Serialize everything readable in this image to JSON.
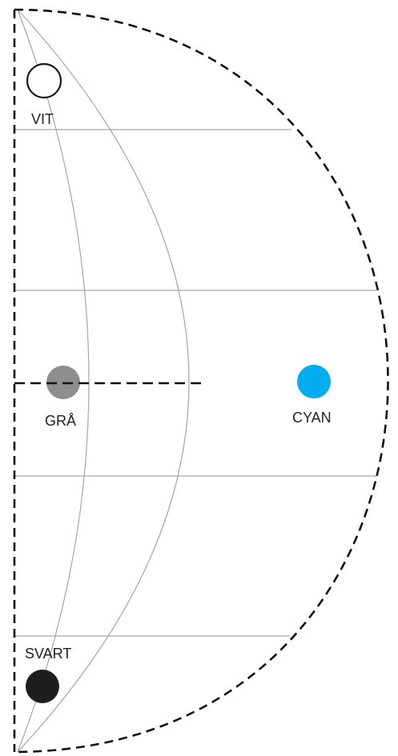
{
  "diagram": {
    "colors": {
      "outline": "#111111",
      "grid": "#a6a6a6",
      "vit": "#ffffff",
      "gra": "#8e8e8e",
      "cyan": "#00aeef",
      "svart": "#1e1e1e"
    },
    "points": [
      {
        "id": "vit",
        "label": "VIT",
        "color": "#ffffff"
      },
      {
        "id": "gra",
        "label": "GRÅ",
        "color": "#8e8e8e"
      },
      {
        "id": "cyan",
        "label": "CYAN",
        "color": "#00aeef"
      },
      {
        "id": "svart",
        "label": "SVART",
        "color": "#1e1e1e"
      }
    ]
  }
}
